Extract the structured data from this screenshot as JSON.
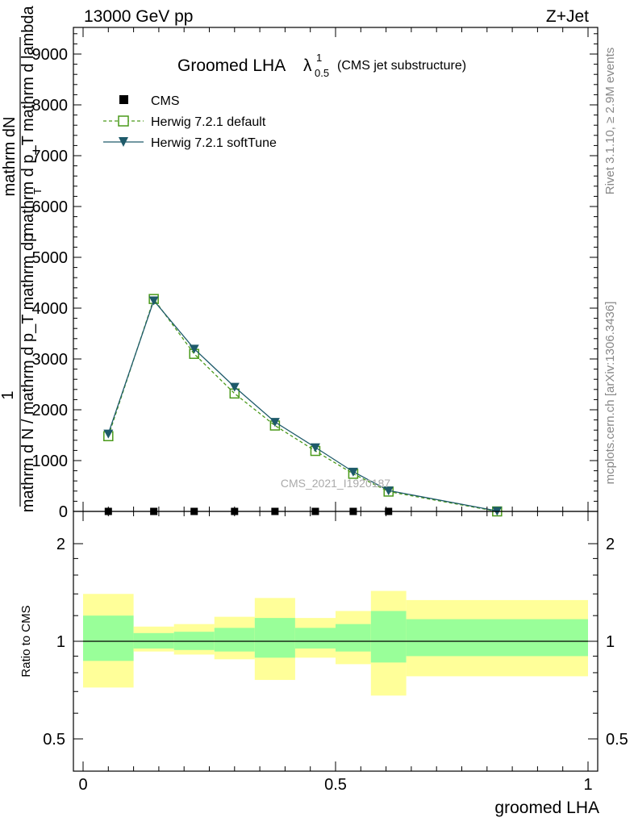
{
  "header": {
    "left": "13000 GeV pp",
    "right": "Z+Jet"
  },
  "side_labels": {
    "rivet": "Rivet 3.1.10, ≥ 2.9M events",
    "mcplots": "mcplots.cern.ch [arXiv:1306.3436]"
  },
  "chart_data": [
    {
      "type": "line",
      "title_main": "Groomed LHA",
      "title_symbol": "λ",
      "title_sup": "1",
      "title_sub": "0.5",
      "title_note": "(CMS jet substructure)",
      "watermark": "CMS_2021_I1920187",
      "ylabel": {
        "fraction_numerator": "1",
        "numerator": "mathrm dN",
        "denominator_top": "mathrm d p_T mathrm d lambda",
        "denominator_bottom": "mathrm d N / mathrm d p_T mathrm dp",
        "denominator_sub": "T"
      },
      "xlim": [
        0,
        1
      ],
      "ylim": [
        0,
        9400
      ],
      "yticks": [
        {
          "v": 0,
          "label": "0"
        },
        {
          "v": 1000,
          "label": "1000"
        },
        {
          "v": 2000,
          "label": "2000"
        },
        {
          "v": 3000,
          "label": "3000"
        },
        {
          "v": 4000,
          "label": "4000"
        },
        {
          "v": 5000,
          "label": "5000"
        },
        {
          "v": 6000,
          "label": "6000"
        },
        {
          "v": 7000,
          "label": "7000"
        },
        {
          "v": 8000,
          "label": "8000"
        },
        {
          "v": 9000,
          "label": "9000"
        }
      ],
      "legend": {
        "placement": "top-left",
        "entries": [
          {
            "key": "cms",
            "label": "CMS"
          },
          {
            "key": "default",
            "label": "Herwig 7.2.1 default"
          },
          {
            "key": "softtune",
            "label": "Herwig 7.2.1 softTune"
          }
        ]
      },
      "series": [
        {
          "key": "cms",
          "name": "CMS",
          "color": "#000000",
          "marker": "square-filled",
          "x": [
            0.05,
            0.14,
            0.22,
            0.3,
            0.38,
            0.46,
            0.535,
            0.605
          ],
          "y": [
            0,
            0,
            0,
            0,
            0,
            0,
            0,
            0
          ]
        },
        {
          "key": "default",
          "name": "Herwig 7.2.1 default",
          "color": "#4a9a1a",
          "marker": "square-open",
          "dashed": true,
          "x": [
            0.05,
            0.14,
            0.22,
            0.3,
            0.38,
            0.46,
            0.535,
            0.605,
            0.82
          ],
          "y": [
            1480,
            4180,
            3100,
            2320,
            1690,
            1190,
            740,
            390,
            0
          ]
        },
        {
          "key": "softtune",
          "name": "Herwig 7.2.1 softTune",
          "color": "#1e5a6a",
          "marker": "triangle-down-filled",
          "x": [
            0.05,
            0.14,
            0.22,
            0.3,
            0.38,
            0.46,
            0.535,
            0.605,
            0.82
          ],
          "y": [
            1530,
            4150,
            3200,
            2450,
            1760,
            1260,
            780,
            410,
            10
          ]
        }
      ]
    },
    {
      "type": "area",
      "ylabel": "Ratio to CMS",
      "xlabel": "groomed LHA",
      "xlim": [
        0,
        1
      ],
      "ylim": [
        0.4,
        2.3
      ],
      "yticks": [
        {
          "v": 0.5,
          "label": "0.5"
        },
        {
          "v": 1,
          "label": "1"
        },
        {
          "v": 2,
          "label": "2"
        }
      ],
      "xticks": [
        {
          "v": 0,
          "label": "0"
        },
        {
          "v": 0.5,
          "label": "0.5"
        },
        {
          "v": 1,
          "label": "1"
        }
      ],
      "band_colors": {
        "outer": "#ffff99",
        "inner": "#99ff99",
        "line": "#000000"
      },
      "bins": [
        {
          "x0": 0.0,
          "x1": 0.1,
          "outer": [
            0.72,
            1.4
          ],
          "inner": [
            0.87,
            1.2
          ]
        },
        {
          "x0": 0.1,
          "x1": 0.18,
          "outer": [
            0.93,
            1.11
          ],
          "inner": [
            0.95,
            1.06
          ]
        },
        {
          "x0": 0.18,
          "x1": 0.26,
          "outer": [
            0.91,
            1.13
          ],
          "inner": [
            0.94,
            1.07
          ]
        },
        {
          "x0": 0.26,
          "x1": 0.34,
          "outer": [
            0.88,
            1.19
          ],
          "inner": [
            0.93,
            1.1
          ]
        },
        {
          "x0": 0.34,
          "x1": 0.42,
          "outer": [
            0.76,
            1.36
          ],
          "inner": [
            0.89,
            1.18
          ]
        },
        {
          "x0": 0.42,
          "x1": 0.5,
          "outer": [
            0.89,
            1.18
          ],
          "inner": [
            0.95,
            1.1
          ]
        },
        {
          "x0": 0.5,
          "x1": 0.57,
          "outer": [
            0.85,
            1.24
          ],
          "inner": [
            0.93,
            1.13
          ]
        },
        {
          "x0": 0.57,
          "x1": 0.64,
          "outer": [
            0.68,
            1.43
          ],
          "inner": [
            0.86,
            1.24
          ]
        },
        {
          "x0": 0.64,
          "x1": 1.0,
          "outer": [
            0.78,
            1.34
          ],
          "inner": [
            0.9,
            1.17
          ]
        }
      ]
    }
  ]
}
